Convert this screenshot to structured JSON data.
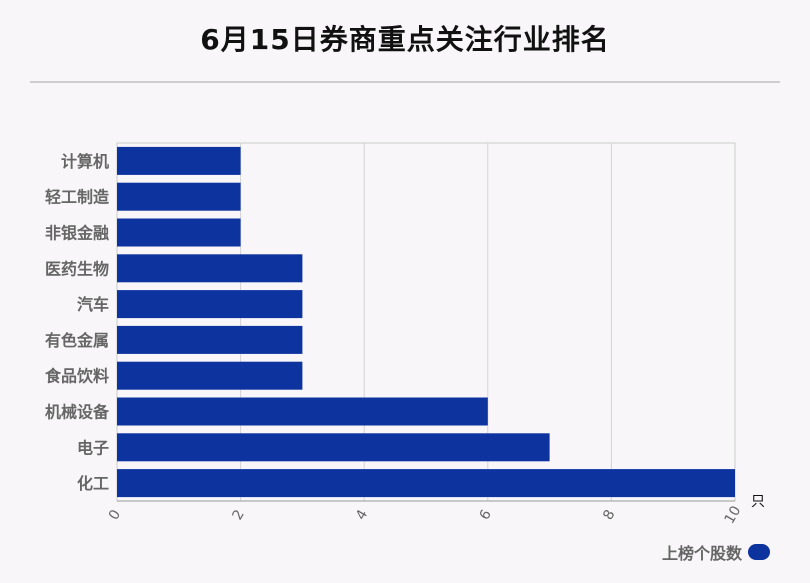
{
  "title": "6月15日券商重点关注行业排名",
  "chart_data": {
    "type": "bar",
    "orientation": "horizontal",
    "categories": [
      "计算机",
      "轻工制造",
      "非银金融",
      "医药生物",
      "汽车",
      "有色金属",
      "食品饮料",
      "机械设备",
      "电子",
      "化工"
    ],
    "series": [
      {
        "name": "上榜个股数",
        "values": [
          2,
          2,
          2,
          3,
          3,
          3,
          3,
          6,
          7,
          10
        ]
      }
    ],
    "xlim": [
      0,
      10
    ],
    "xticks": [
      0,
      2,
      4,
      6,
      8,
      10
    ],
    "x_unit": "只",
    "grid": true,
    "legend_position": "bottom-right",
    "bar_color": "#0d339f"
  }
}
